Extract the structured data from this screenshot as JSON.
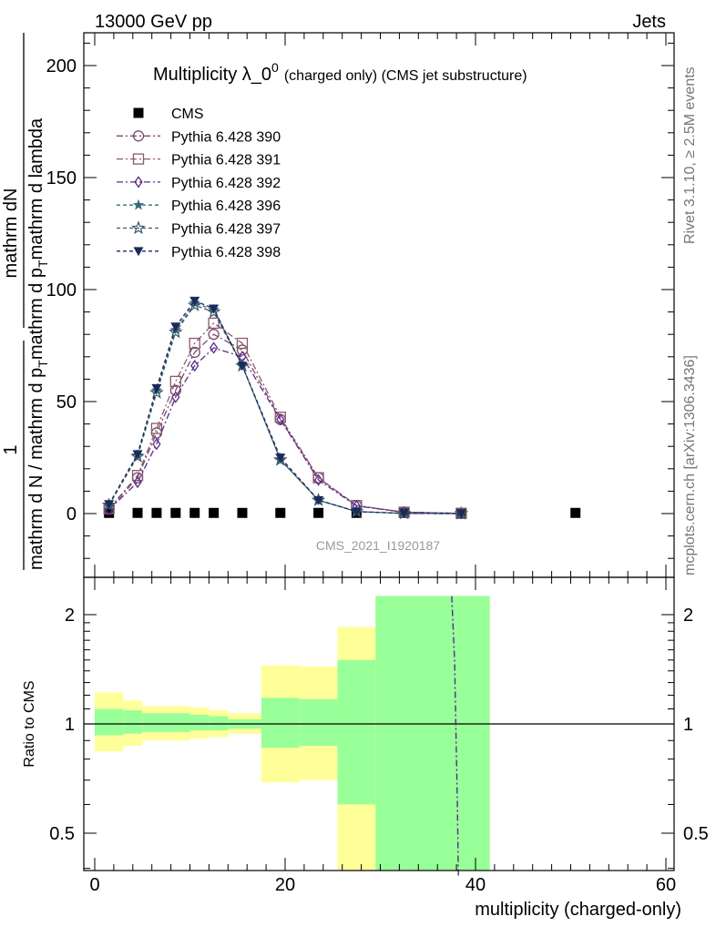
{
  "header": {
    "energy_label": "13000 GeV pp",
    "process_label": "Jets"
  },
  "side_labels": {
    "rivet": "Rivet 3.1.10, ≥ 2.5M events",
    "mcplots": "mcplots.cern.ch [arXiv:1306.3436]"
  },
  "analysis_id": "CMS_2021_I1920187",
  "chart_data": [
    {
      "type": "line",
      "title": "Multiplicity λ_0",
      "title_superscript": "0",
      "title_suffix": "(charged only) (CMS jet substructure)",
      "ylabel_numerator": "1",
      "ylabel_mid": "mathrm dN",
      "ylabel_bottom": "mathrm d N / mathrm d p",
      "ylabel_mid_sub": "T",
      "ylabel_tail": "mathrm d p",
      "ylabel_tail_sub": "T",
      "ylabel_tail2": "mathrm d lambda",
      "xlim": [
        -1,
        60
      ],
      "ylim": [
        -25,
        215
      ],
      "yticks": [
        0,
        50,
        100,
        150,
        200
      ],
      "legend_position": "top-left",
      "series": [
        {
          "name": "CMS",
          "marker": "square",
          "color": "#000000",
          "x": [
            1.5,
            4.5,
            6.5,
            8.5,
            10.5,
            12.5,
            15.5,
            19.5,
            23.5,
            27.5,
            32.5,
            38.5,
            50.5
          ],
          "y": [
            0.3,
            0.3,
            0.3,
            0.3,
            0.3,
            0.3,
            0.3,
            0.3,
            0.3,
            0.3,
            0.3,
            0.3,
            0.3
          ]
        },
        {
          "name": "Pythia 6.428 390",
          "marker": "circle-open",
          "dash": "7,3,2,3",
          "color": "#7a4a72",
          "x": [
            1.5,
            4.5,
            6.5,
            8.5,
            10.5,
            12.5,
            15.5,
            19.5,
            23.5,
            27.5,
            32.5,
            38.5
          ],
          "y": [
            2,
            16,
            36,
            55,
            72,
            80,
            73,
            42,
            16,
            3.5,
            0.6,
            0.1
          ]
        },
        {
          "name": "Pythia 6.428 391",
          "marker": "square-open",
          "dash": "7,3,2,3",
          "color": "#8a5a6a",
          "x": [
            1.5,
            4.5,
            6.5,
            8.5,
            10.5,
            12.5,
            15.5,
            19.5,
            23.5,
            27.5,
            32.5,
            38.5
          ],
          "y": [
            2.2,
            17,
            38,
            59,
            76,
            85,
            76,
            43,
            16,
            3.6,
            0.6,
            0.1
          ]
        },
        {
          "name": "Pythia 6.428 392",
          "marker": "diamond-open",
          "dash": "7,3,2,3",
          "color": "#5a2a8a",
          "x": [
            1.5,
            4.5,
            6.5,
            8.5,
            10.5,
            12.5,
            15.5,
            19.5,
            23.5,
            27.5,
            32.5,
            38.5
          ],
          "y": [
            1.8,
            14,
            31,
            52,
            66,
            74,
            70,
            42,
            15,
            3.4,
            0.6,
            0.1
          ]
        },
        {
          "name": "Pythia 6.428 396",
          "marker": "star",
          "dash": "4,3",
          "color": "#3a6a7a",
          "x": [
            1.5,
            4.5,
            6.5,
            8.5,
            10.5,
            12.5,
            15.5,
            19.5,
            23.5,
            27.5,
            32.5,
            38.5
          ],
          "y": [
            4,
            26,
            55,
            82,
            94,
            91,
            66,
            24,
            6,
            0.9,
            0.1,
            0.02
          ]
        },
        {
          "name": "Pythia 6.428 397",
          "marker": "star-open",
          "dash": "4,3",
          "color": "#3a5a6a",
          "x": [
            1.5,
            4.5,
            6.5,
            8.5,
            10.5,
            12.5,
            15.5,
            19.5,
            23.5,
            27.5,
            32.5,
            38.5
          ],
          "y": [
            3.8,
            25.5,
            54,
            81,
            93,
            90,
            66,
            24,
            6,
            0.9,
            0.1,
            0.02
          ]
        },
        {
          "name": "Pythia 6.428 398",
          "marker": "triangle-down",
          "dash": "4,3",
          "color": "#1a2a5a",
          "x": [
            1.5,
            4.5,
            6.5,
            8.5,
            10.5,
            12.5,
            15.5,
            19.5,
            23.5,
            27.5,
            32.5,
            38.5
          ],
          "y": [
            4.2,
            26.5,
            56,
            83.5,
            95,
            91.5,
            66,
            25,
            6,
            0.9,
            0.1,
            0.02
          ]
        }
      ]
    },
    {
      "type": "area",
      "ylabel": "Ratio to CMS",
      "xlabel": "multiplicity (charged-only)",
      "xlim": [
        -1,
        60
      ],
      "ylim": [
        0.38,
        2.25
      ],
      "yticks": [
        0.5,
        1,
        2
      ],
      "ytick_labels": [
        "0.5",
        "1",
        "2"
      ],
      "xticks": [
        0,
        20,
        40,
        60
      ],
      "xtick_labels": [
        "0",
        "20",
        "40",
        "60"
      ],
      "reference_line": 1,
      "bands": [
        {
          "x0": 0,
          "x1": 3,
          "yellow": [
            0.84,
            1.22
          ],
          "green": [
            0.93,
            1.1
          ]
        },
        {
          "x0": 3,
          "x1": 5,
          "yellow": [
            0.87,
            1.16
          ],
          "green": [
            0.94,
            1.09
          ]
        },
        {
          "x0": 5,
          "x1": 8,
          "yellow": [
            0.9,
            1.12
          ],
          "green": [
            0.95,
            1.07
          ]
        },
        {
          "x0": 8,
          "x1": 10,
          "yellow": [
            0.9,
            1.12
          ],
          "green": [
            0.95,
            1.07
          ]
        },
        {
          "x0": 10,
          "x1": 12,
          "yellow": [
            0.91,
            1.11
          ],
          "green": [
            0.96,
            1.06
          ]
        },
        {
          "x0": 12,
          "x1": 14,
          "yellow": [
            0.92,
            1.09
          ],
          "green": [
            0.96,
            1.05
          ]
        },
        {
          "x0": 14,
          "x1": 17.5,
          "yellow": [
            0.94,
            1.07
          ],
          "green": [
            0.97,
            1.03
          ]
        },
        {
          "x0": 17.5,
          "x1": 21.5,
          "yellow": [
            0.69,
            1.45
          ],
          "green": [
            0.86,
            1.18
          ]
        },
        {
          "x0": 21.5,
          "x1": 25.5,
          "yellow": [
            0.7,
            1.44
          ],
          "green": [
            0.87,
            1.17
          ]
        },
        {
          "x0": 25.5,
          "x1": 29.5,
          "yellow": [
            0.38,
            1.85
          ],
          "green": [
            0.6,
            1.5
          ]
        },
        {
          "x0": 29.5,
          "x1": 41.5,
          "yellow": [
            0.38,
            2.25
          ],
          "green": [
            0.38,
            2.25
          ]
        }
      ],
      "series": [
        {
          "name": "Pythia 6.428 392 ratio",
          "dash": "7,3,2,3",
          "color": "#5a2a8a",
          "x": [
            37.5,
            37.8,
            38.1,
            38.2
          ],
          "y": [
            2.25,
            1.5,
            0.6,
            0.38
          ]
        }
      ]
    }
  ]
}
